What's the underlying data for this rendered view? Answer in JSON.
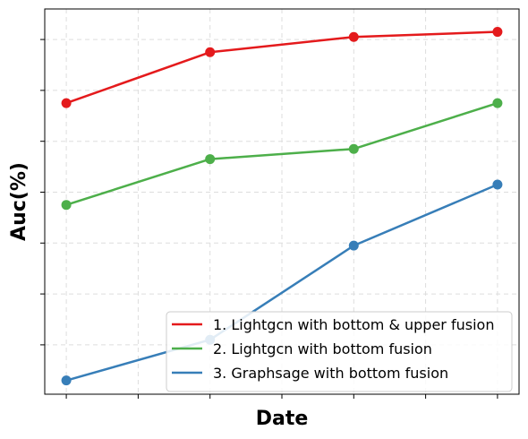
{
  "chart_data": {
    "type": "line",
    "title": "",
    "xlabel": "Date",
    "ylabel": "Auc(%)",
    "x": [
      1,
      2,
      3,
      4
    ],
    "xlim": [
      0.85,
      4.15
    ],
    "ylim": [
      0.03,
      7.6
    ],
    "x_tick_labels_shown": false,
    "y_tick_labels_shown": false,
    "grid": true,
    "legend_position": "bottom-right",
    "series": [
      {
        "name": "1. Lightgcn with bottom & upper fusion",
        "color": "#e41a1c",
        "values": [
          5.75,
          6.75,
          7.05,
          7.15
        ]
      },
      {
        "name": "2. Lightgcn with bottom fusion",
        "color": "#4daf4a",
        "values": [
          3.75,
          4.65,
          4.85,
          5.75
        ]
      },
      {
        "name": "3. Graphsage with bottom fusion",
        "color": "#377eb8",
        "values": [
          0.3,
          1.1,
          2.95,
          4.15
        ]
      }
    ]
  }
}
